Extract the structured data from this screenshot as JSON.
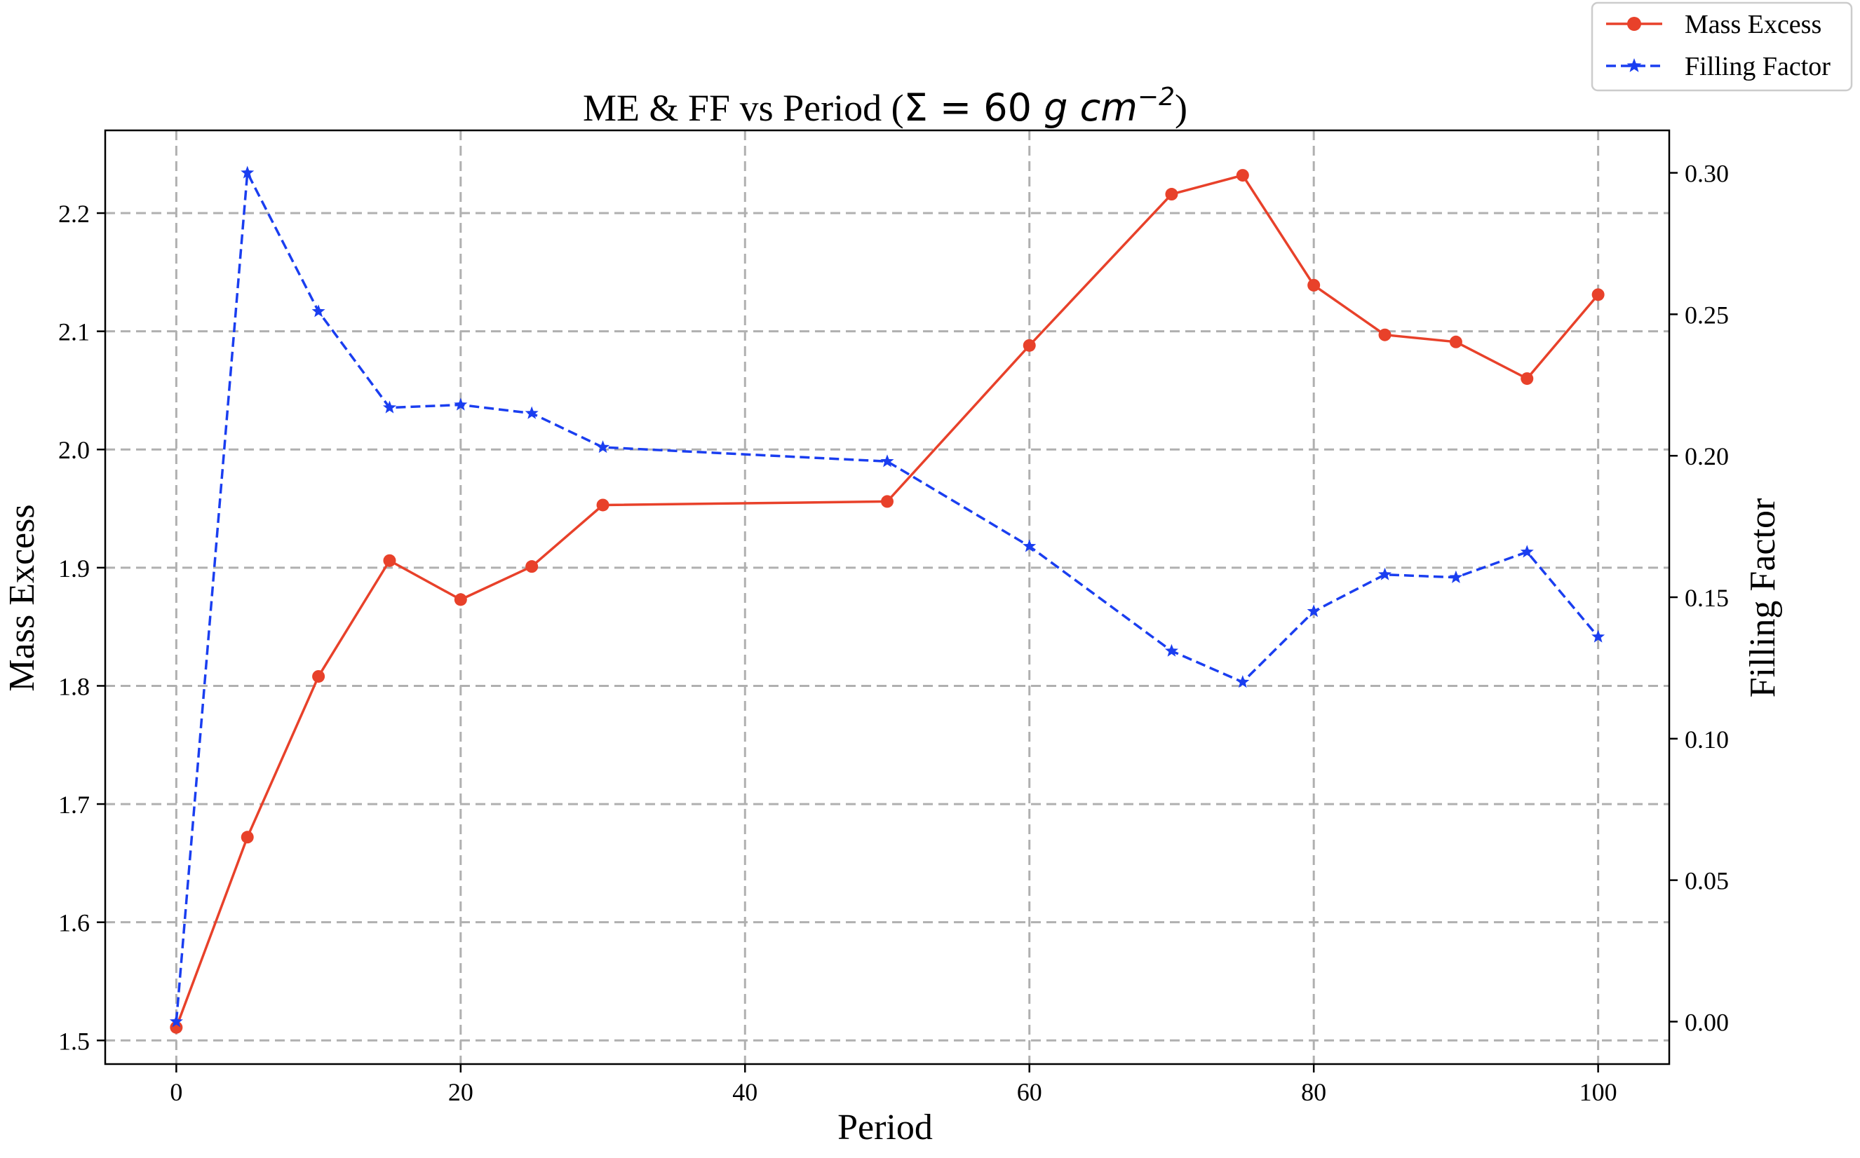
{
  "chart_data": {
    "type": "line",
    "title_prefix": "ME & FF vs Period (",
    "title_math_symbol": "Σ",
    "title_math": " = 60 ",
    "title_math_italic": "g cm",
    "title_math_exp": "−2",
    "title_suffix": ")",
    "xlabel": "Period",
    "ylabel_left": "Mass Excess",
    "ylabel_right": "Filling Factor",
    "xlim": [
      -5,
      105
    ],
    "ylim_left": [
      1.48,
      2.27
    ],
    "ylim_right": [
      -0.015,
      0.315
    ],
    "x_ticks": [
      0,
      20,
      40,
      60,
      80,
      100
    ],
    "x_tick_labels": [
      "0",
      "20",
      "40",
      "60",
      "80",
      "100"
    ],
    "y_left_ticks": [
      1.5,
      1.6,
      1.7,
      1.8,
      1.9,
      2.0,
      2.1,
      2.2
    ],
    "y_left_tick_labels": [
      "1.5",
      "1.6",
      "1.7",
      "1.8",
      "1.9",
      "2.0",
      "2.1",
      "2.2"
    ],
    "y_right_ticks": [
      0.0,
      0.05,
      0.1,
      0.15,
      0.2,
      0.25,
      0.3
    ],
    "y_right_tick_labels": [
      "0.00",
      "0.05",
      "0.10",
      "0.15",
      "0.20",
      "0.25",
      "0.30"
    ],
    "grid": true,
    "legend_position": "top-right",
    "series": [
      {
        "name": "Mass Excess",
        "axis": "left",
        "color": "#e8412a",
        "marker": "circle",
        "line_style": "solid",
        "x": [
          0,
          5,
          10,
          15,
          20,
          25,
          30,
          50,
          60,
          70,
          75,
          80,
          85,
          90,
          95,
          100
        ],
        "values": [
          1.511,
          1.672,
          1.808,
          1.906,
          1.873,
          1.901,
          1.953,
          1.956,
          2.088,
          2.216,
          2.232,
          2.139,
          2.097,
          2.091,
          2.06,
          2.131
        ]
      },
      {
        "name": "Filling Factor",
        "axis": "right",
        "color": "#1a3ef0",
        "marker": "star",
        "line_style": "dashed",
        "x": [
          0,
          5,
          10,
          15,
          20,
          25,
          30,
          50,
          60,
          70,
          75,
          80,
          85,
          90,
          95,
          100
        ],
        "values": [
          0.0,
          0.3,
          0.251,
          0.217,
          0.218,
          0.215,
          0.203,
          0.198,
          0.168,
          0.131,
          0.12,
          0.145,
          0.158,
          0.157,
          0.166,
          0.136
        ]
      }
    ]
  }
}
